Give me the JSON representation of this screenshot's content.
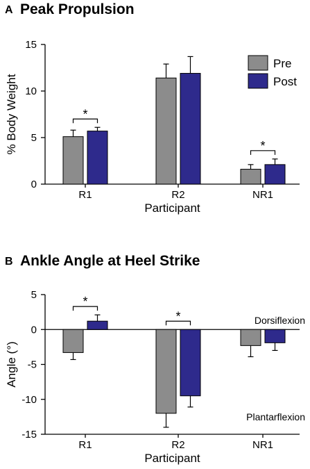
{
  "chart_data": [
    {
      "type": "bar",
      "panel_label": "A",
      "title": "Peak Propulsion",
      "xlabel": "Participant",
      "ylabel": "% Body Weight",
      "categories": [
        "R1",
        "R2",
        "NR1"
      ],
      "ylim": [
        0,
        15
      ],
      "yticks": [
        "0",
        "5",
        "10",
        "15"
      ],
      "series": [
        {
          "name": "Pre",
          "color": "#8c8c8c",
          "values": [
            5.1,
            11.4,
            1.6
          ],
          "errors": [
            0.7,
            1.5,
            0.5
          ]
        },
        {
          "name": "Post",
          "color": "#2e2a8c",
          "values": [
            5.7,
            11.9,
            2.1
          ],
          "errors": [
            0.4,
            1.8,
            0.6
          ]
        }
      ],
      "significance": [
        {
          "category": "R1",
          "label": "*"
        },
        {
          "category": "NR1",
          "label": "*"
        }
      ],
      "legend": "top-right",
      "annotations": []
    },
    {
      "type": "bar",
      "panel_label": "B",
      "title": "Ankle Angle at Heel Strike",
      "xlabel": "Participant",
      "ylabel": "Angle (°)",
      "categories": [
        "R1",
        "R2",
        "NR1"
      ],
      "ylim": [
        -15,
        5
      ],
      "yticks": [
        "-15",
        "-10",
        "-5",
        "0",
        "5"
      ],
      "series": [
        {
          "color": "#8c8c8c",
          "values": [
            -3.3,
            -12.0,
            -2.3
          ],
          "errors": [
            1.0,
            2.0,
            1.6
          ]
        },
        {
          "color": "#2e2a8c",
          "values": [
            1.2,
            -9.5,
            -1.9
          ],
          "errors": [
            0.9,
            1.6,
            1.1
          ]
        }
      ],
      "significance": [
        {
          "category": "R1",
          "label": "*"
        },
        {
          "category": "R2",
          "label": "*"
        }
      ],
      "annotations": [
        "Dorsiflexion",
        "Plantarflexion"
      ]
    }
  ]
}
